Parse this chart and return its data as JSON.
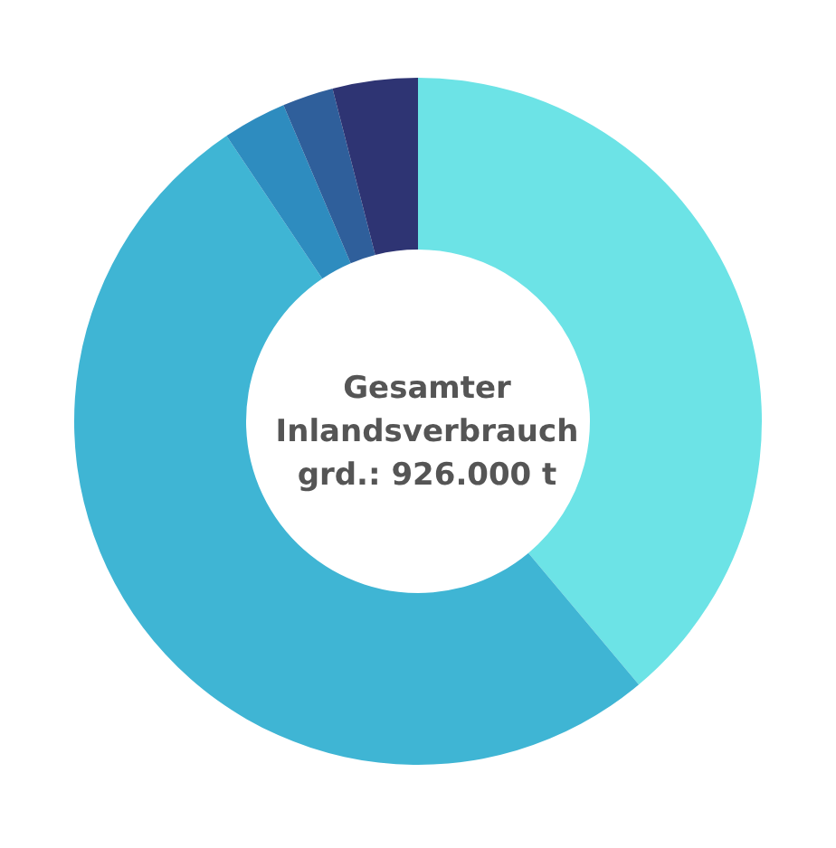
{
  "chart_data": {
    "type": "donut",
    "categories": [
      null,
      null,
      null,
      null,
      null
    ],
    "values": [
      38.9,
      51.7,
      3.0,
      2.4,
      4.0
    ],
    "colors": [
      "#6ce3e6",
      "#3fb5d4",
      "#2e8cbf",
      "#2f5f9b",
      "#2e3473"
    ],
    "annotations": [
      "Gesamter\nInlandsverbrauch\ngrd.: 926.000 t"
    ]
  }
}
